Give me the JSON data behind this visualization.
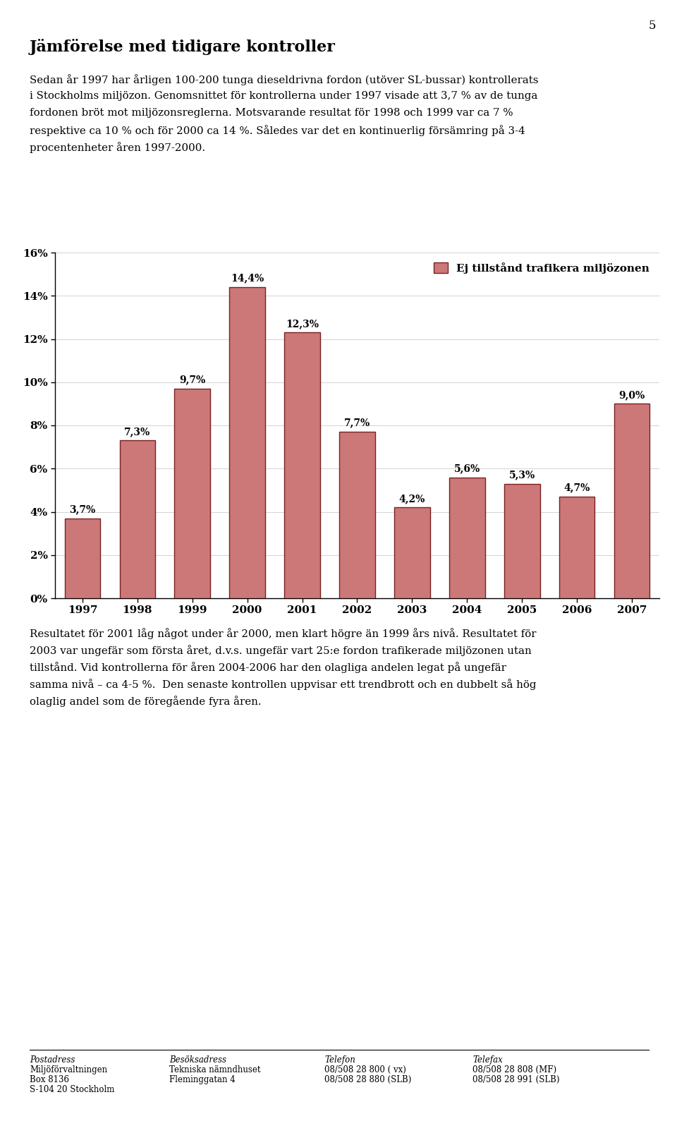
{
  "page_number": "5",
  "title": "Jämförelse med tidigare kontroller",
  "para1_line1": "Sedan år 1997 har årligen 100-200 tunga dieseldrivna fordon (utöver SL-bussar) kontrollerats",
  "para1_line2": "i Stockholms miljözon. Genomsnittet för kontrollerna under 1997 visade att 3,7 % av de tunga",
  "para1_line3": "fordonen bröt mot miljözonsreglerna. Motsvarande resultat för 1998 och 1999 var ca 7 %",
  "para1_line4": "respektive ca 10 % och för 2000 ca 14 %. Således var det en kontinuerlig försämring på 3-4",
  "para1_line5": "procentenheter åren 1997-2000.",
  "para2_line1": "Resultatet för 2001 låg något under år 2000, men klart högre än 1999 års nivå. Resultatet för",
  "para2_line2": "2003 var ungefär som första året, d.v.s. ungefär vart 25:e fordon trafikerade miljözonen utan",
  "para2_line3": "tillstånd. Vid kontrollerna för åren 2004-2006 har den olagliga andelen legat på ungefär",
  "para2_line4": "samma nivå – ca 4-5 %.  Den senaste kontrollen uppvisar ett trendbrott och en dubbelt så hög",
  "para2_line5": "olaglig andel som de föregående fyra åren.",
  "years": [
    1997,
    1998,
    1999,
    2000,
    2001,
    2002,
    2003,
    2004,
    2005,
    2006,
    2007
  ],
  "values": [
    3.7,
    7.3,
    9.7,
    14.4,
    12.3,
    7.7,
    4.2,
    5.6,
    5.3,
    4.7,
    9.0
  ],
  "bar_color": "#cd7878",
  "bar_edge_color": "#7a2020",
  "legend_label": "Ej tillstånd trafikera miljözonen",
  "legend_color": "#cd7878",
  "legend_edge_color": "#7a2020",
  "ylim": [
    0,
    16
  ],
  "yticks": [
    0,
    2,
    4,
    6,
    8,
    10,
    12,
    14,
    16
  ],
  "ytick_labels": [
    "0%",
    "2%",
    "4%",
    "6%",
    "8%",
    "10%",
    "12%",
    "14%",
    "16%"
  ],
  "background_color": "#ffffff",
  "footer_col1": [
    "Postadress",
    "Miljöförvaltningen",
    "Box 8136",
    "S-104 20 Stockholm"
  ],
  "footer_col2": [
    "Besöksadress",
    "Tekniska nämndhuset",
    "Fleminggatan 4"
  ],
  "footer_col3": [
    "Telefon",
    "08/508 28 800 ( vx)",
    "08/508 28 880 (SLB)"
  ],
  "footer_col4": [
    "Telefax",
    "08/508 28 808 (MF)",
    "08/508 28 991 (SLB)"
  ]
}
